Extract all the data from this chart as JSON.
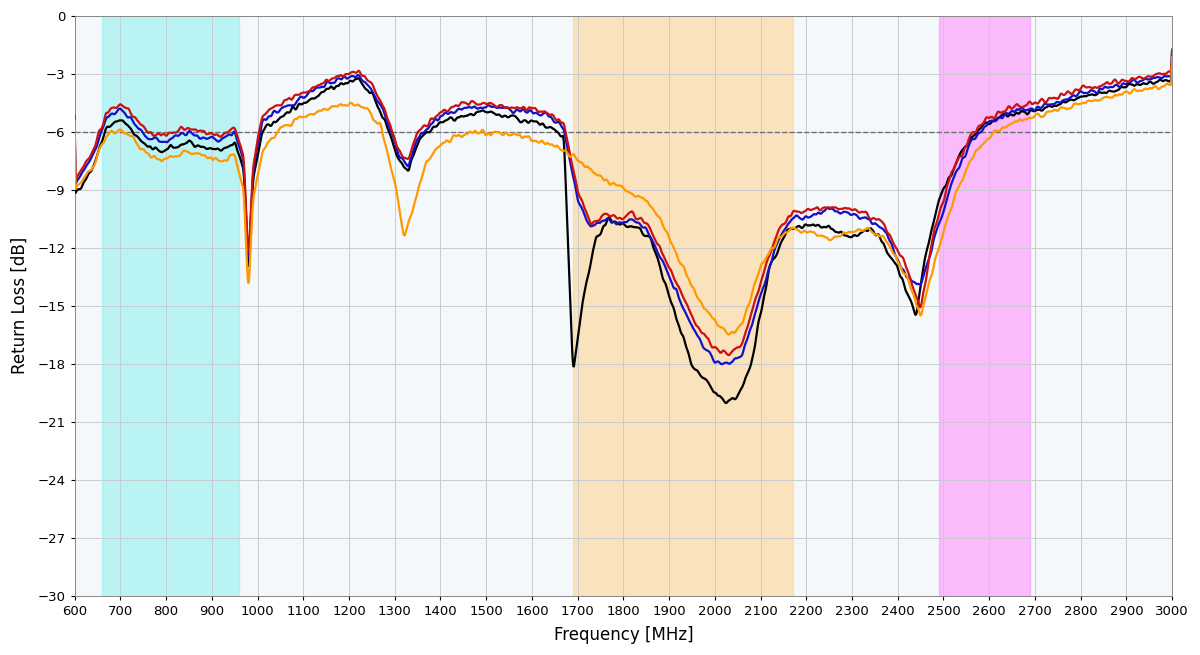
{
  "xlabel": "Frequency [MHz]",
  "ylabel": "Return Loss [dB]",
  "xlim": [
    600,
    3000
  ],
  "ylim": [
    -30,
    0
  ],
  "yticks": [
    0,
    -3,
    -6,
    -9,
    -12,
    -15,
    -18,
    -21,
    -24,
    -27,
    -30
  ],
  "xticks": [
    600,
    700,
    800,
    900,
    1000,
    1100,
    1200,
    1300,
    1400,
    1500,
    1600,
    1700,
    1800,
    1900,
    2000,
    2100,
    2200,
    2300,
    2400,
    2500,
    2600,
    2700,
    2800,
    2900,
    3000
  ],
  "dashed_line_y": -6,
  "line_colors": [
    "black",
    "#1111cc",
    "#cc1111",
    "#ff9900"
  ],
  "line_width": 1.6,
  "band_cyan": [
    660,
    960
  ],
  "band_orange": [
    1690,
    2170
  ],
  "band_pink": [
    2490,
    2690
  ],
  "band_cyan_color": "#80f0f0",
  "band_orange_color": "#ffd080",
  "band_pink_color": "#ff80ff",
  "band_alpha": 0.5,
  "bg_color": "#ffffff",
  "plot_bg_color": "#f5f8fa",
  "grid_color": "#c8ccd0",
  "figsize": [
    12.0,
    6.55
  ],
  "dpi": 100
}
